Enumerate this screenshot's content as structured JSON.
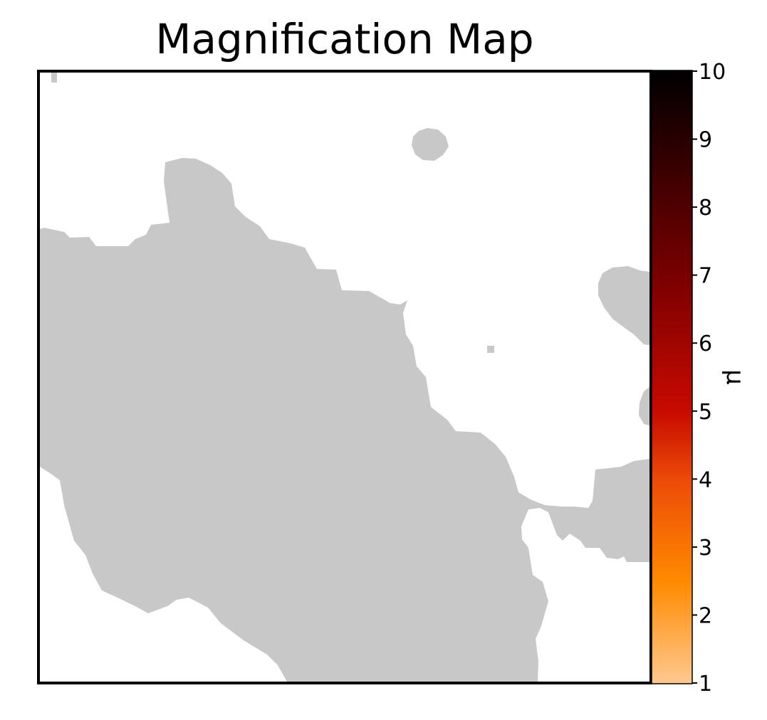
{
  "chart_data": {
    "type": "heatmap",
    "title": "Magnification Map",
    "xlabel": "",
    "ylabel": "",
    "axes_ticks": "hidden",
    "grid": false,
    "background_color": "#ffffff",
    "region_color": "#c8c8c8",
    "colorbar": {
      "label": "μ",
      "orientation": "vertical",
      "placement": "right",
      "range": [
        1,
        10
      ],
      "ticks": [
        1,
        2,
        3,
        4,
        5,
        6,
        7,
        8,
        9,
        10
      ],
      "tick_labels": [
        "1",
        "2",
        "3",
        "4",
        "5",
        "6",
        "7",
        "8",
        "9",
        "10"
      ],
      "colormap_stops": [
        {
          "value": 1,
          "color": "#ffc890"
        },
        {
          "value": 2.5,
          "color": "#ff8a00"
        },
        {
          "value": 4,
          "color": "#ec4a08"
        },
        {
          "value": 5,
          "color": "#c80a00"
        },
        {
          "value": 7,
          "color": "#780000"
        },
        {
          "value": 8.5,
          "color": "#3c0000"
        },
        {
          "value": 10,
          "color": "#000000"
        }
      ]
    }
  }
}
